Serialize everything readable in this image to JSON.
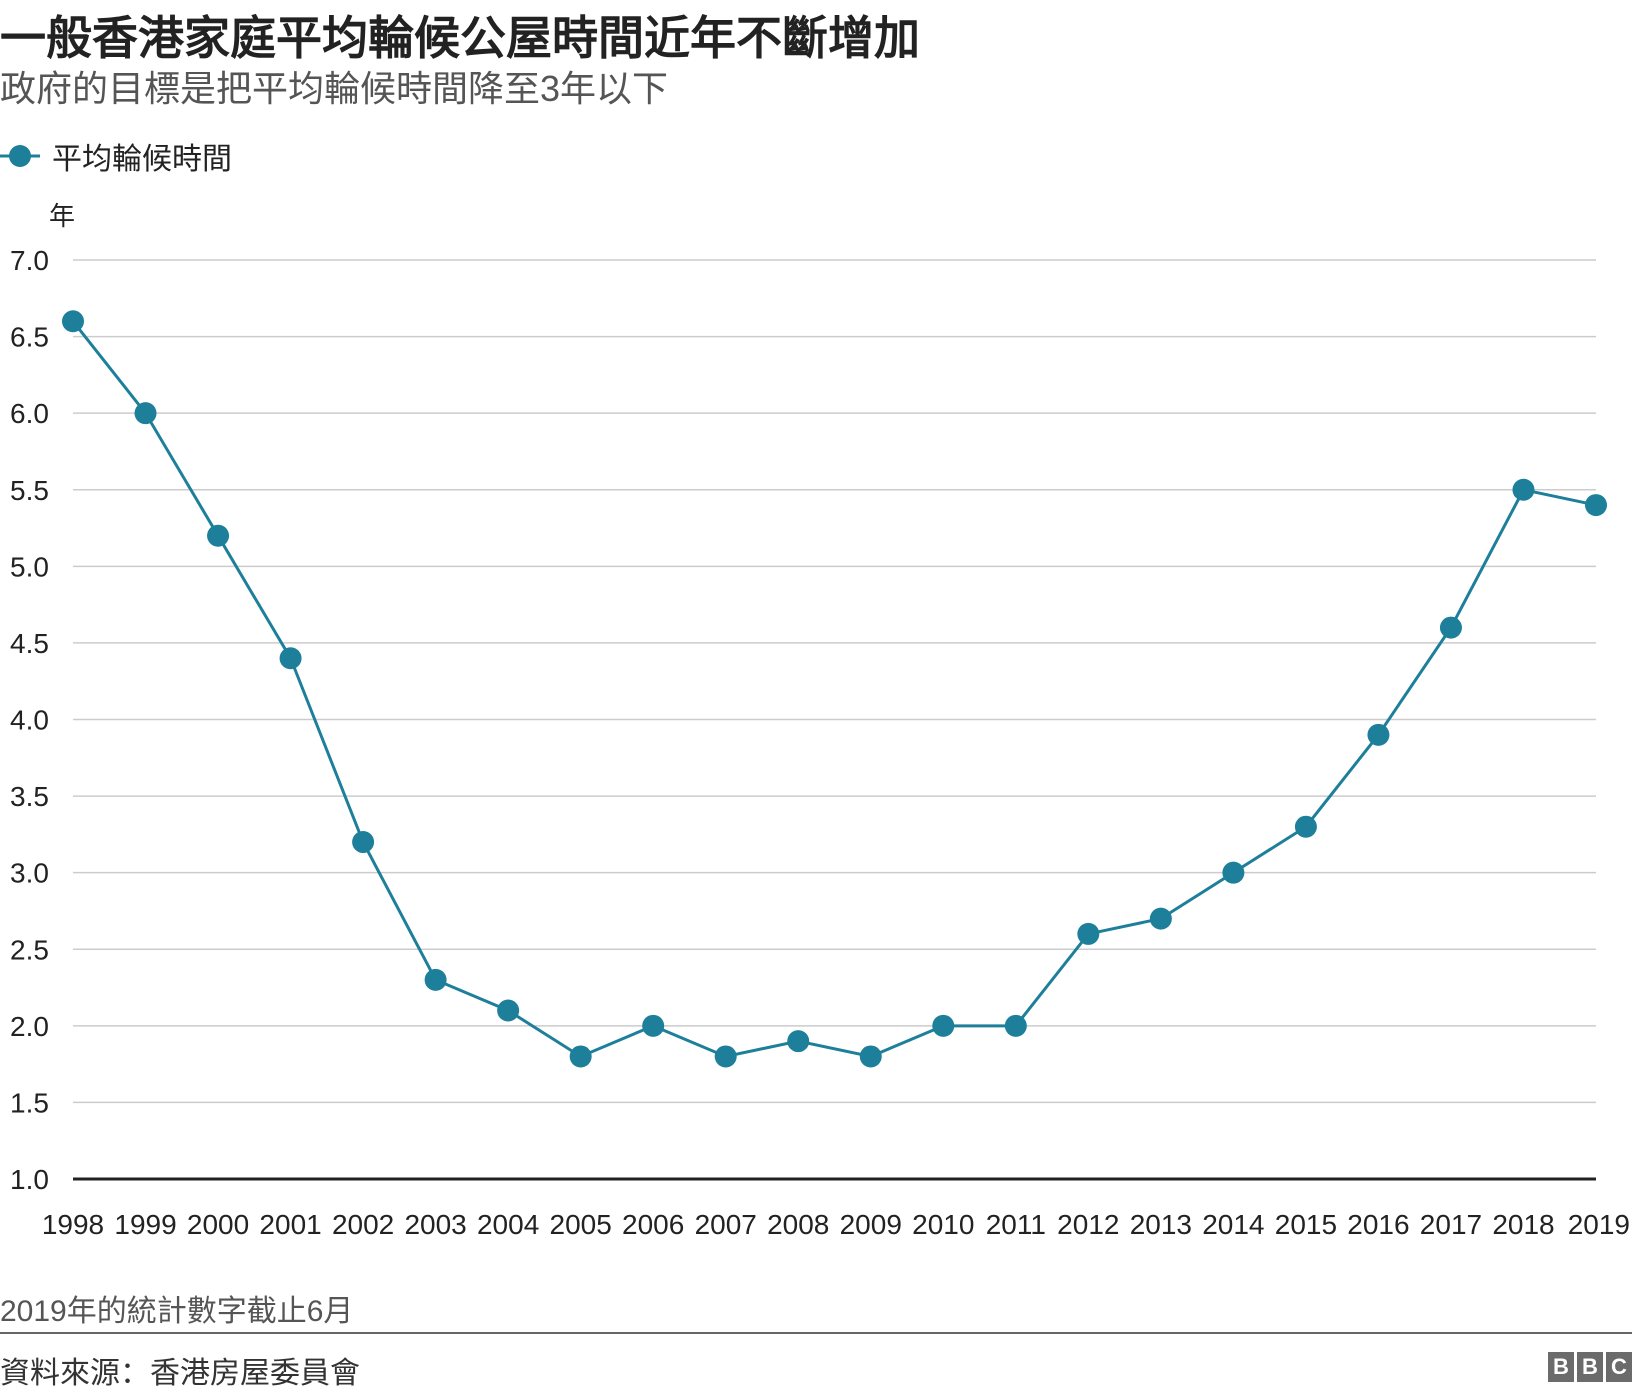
{
  "header": {
    "title": "一般香港家庭平均輪候公屋時間近年不斷增加",
    "subtitle": "政府的目標是把平均輪候時間降至3年以下"
  },
  "legend": {
    "label": "平均輪候時間"
  },
  "colors": {
    "series": "#1d7f9a",
    "grid": "#cccccc",
    "axis": "#222222"
  },
  "chart_data": {
    "type": "line",
    "title": "一般香港家庭平均輪候公屋時間近年不斷增加",
    "subtitle": "政府的目標是把平均輪候時間降至3年以下",
    "xlabel": "",
    "ylabel": "年",
    "ylim": [
      1.0,
      7.0
    ],
    "yticks": [
      "1.0",
      "1.5",
      "2.0",
      "2.5",
      "3.0",
      "3.5",
      "4.0",
      "4.5",
      "5.0",
      "5.5",
      "6.0",
      "6.5",
      "7.0"
    ],
    "grid": true,
    "legend_position": "top-left",
    "categories": [
      "1998",
      "1999",
      "2000",
      "2001",
      "2002",
      "2003",
      "2004",
      "2005",
      "2006",
      "2007",
      "2008",
      "2009",
      "2010",
      "2011",
      "2012",
      "2013",
      "2014",
      "2015",
      "2016",
      "2017",
      "2018",
      "2019"
    ],
    "series": [
      {
        "name": "平均輪候時間",
        "values": [
          6.6,
          6.0,
          5.2,
          4.4,
          3.2,
          2.3,
          2.1,
          1.8,
          2.0,
          1.8,
          1.9,
          1.8,
          2.0,
          2.0,
          2.6,
          2.7,
          3.0,
          3.3,
          3.9,
          4.6,
          5.5,
          5.4
        ]
      }
    ]
  },
  "footer": {
    "note": "2019年的統計數字截止6月",
    "source": "資料來源：香港房屋委員會",
    "logo": [
      "B",
      "B",
      "C"
    ]
  }
}
